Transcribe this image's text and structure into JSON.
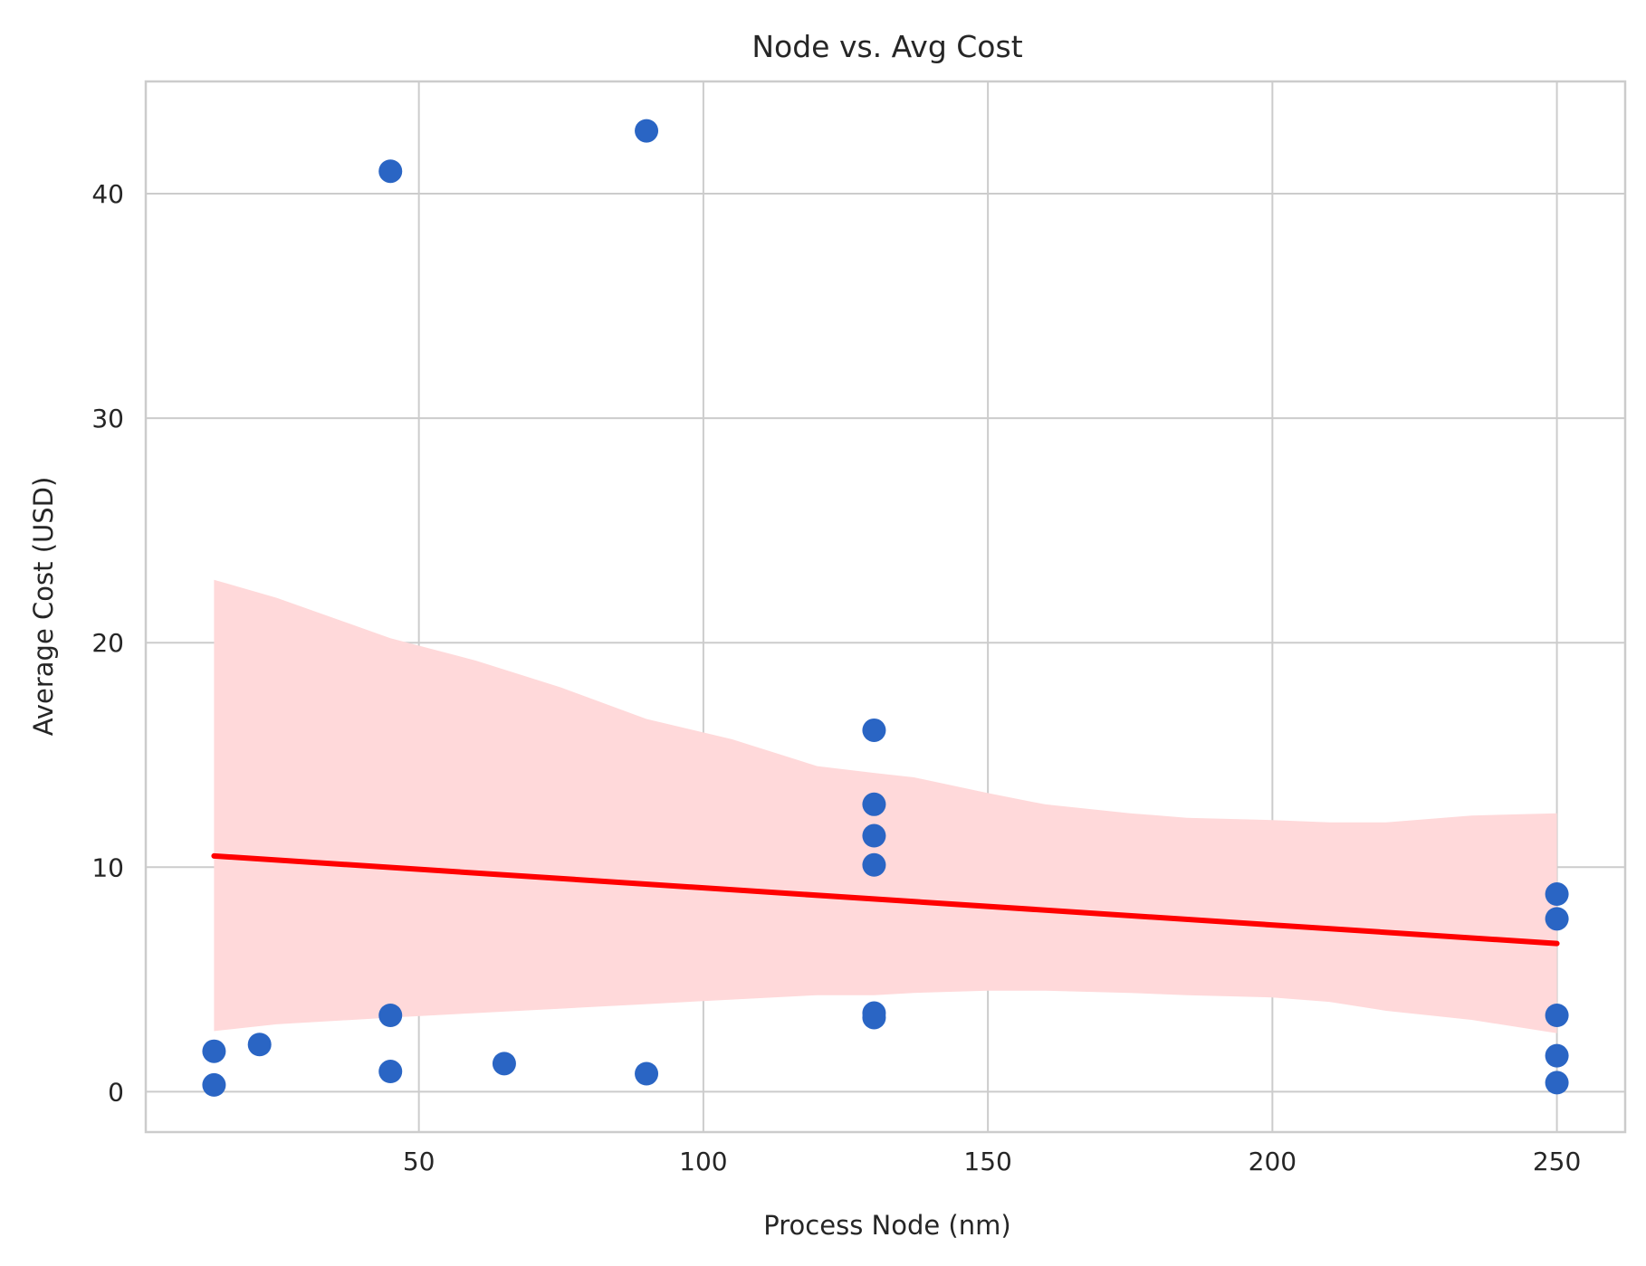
{
  "chart_data": {
    "type": "scatter",
    "title": "Node vs. Avg Cost",
    "xlabel": "Process Node (nm)",
    "ylabel": "Average Cost (USD)",
    "xlim": [
      2,
      262
    ],
    "ylim": [
      -1.8,
      45
    ],
    "xticks": [
      50,
      100,
      150,
      200,
      250
    ],
    "yticks": [
      0,
      10,
      20,
      30,
      40
    ],
    "grid": true,
    "colors": {
      "points": "#2a65c4",
      "fit": "#ff0000",
      "band": "#ffd9da"
    },
    "points": [
      {
        "x": 14,
        "y": 1.8
      },
      {
        "x": 14,
        "y": 0.3
      },
      {
        "x": 22,
        "y": 2.1
      },
      {
        "x": 45,
        "y": 41.0
      },
      {
        "x": 45,
        "y": 3.4
      },
      {
        "x": 45,
        "y": 0.9
      },
      {
        "x": 65,
        "y": 1.25
      },
      {
        "x": 90,
        "y": 42.8
      },
      {
        "x": 90,
        "y": 0.8
      },
      {
        "x": 130,
        "y": 16.1
      },
      {
        "x": 130,
        "y": 12.8
      },
      {
        "x": 130,
        "y": 11.4
      },
      {
        "x": 130,
        "y": 10.1
      },
      {
        "x": 130,
        "y": 3.5
      },
      {
        "x": 130,
        "y": 3.3
      },
      {
        "x": 250,
        "y": 8.8
      },
      {
        "x": 250,
        "y": 7.7
      },
      {
        "x": 250,
        "y": 3.4
      },
      {
        "x": 250,
        "y": 1.6
      },
      {
        "x": 250,
        "y": 0.4
      }
    ],
    "regression": {
      "x": [
        14,
        250
      ],
      "y": [
        10.5,
        6.6
      ]
    },
    "confidence_band": {
      "x": [
        14,
        25,
        45,
        60,
        75,
        90,
        105,
        120,
        130,
        137,
        150,
        160,
        175,
        185,
        200,
        210,
        220,
        235,
        250
      ],
      "upper": [
        22.8,
        22.0,
        20.2,
        19.2,
        18.0,
        16.6,
        15.7,
        14.5,
        14.2,
        14.0,
        13.3,
        12.8,
        12.4,
        12.2,
        12.1,
        12.0,
        12.0,
        12.3,
        12.4
      ],
      "lower": [
        2.7,
        3.0,
        3.3,
        3.5,
        3.7,
        3.9,
        4.1,
        4.3,
        4.3,
        4.4,
        4.5,
        4.5,
        4.4,
        4.3,
        4.2,
        4.0,
        3.6,
        3.2,
        2.6
      ]
    }
  }
}
